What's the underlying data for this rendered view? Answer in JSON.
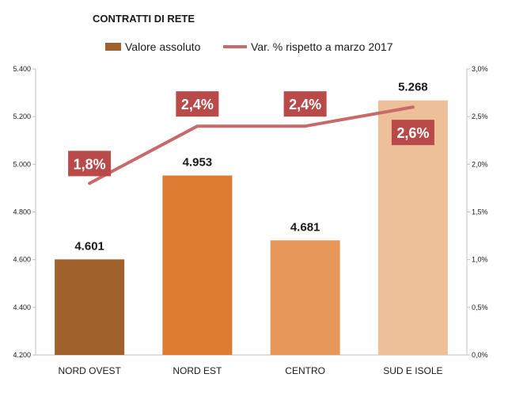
{
  "chart_data": {
    "type": "bar",
    "title": "CONTRATTI DI RETE",
    "categories": [
      "NORD OVEST",
      "NORD EST",
      "CENTRO",
      "SUD E ISOLE"
    ],
    "series": [
      {
        "name": "Valore assoluto",
        "type": "bar",
        "axis": "left",
        "values": [
          4601,
          4953,
          4681,
          5268
        ],
        "labels": [
          "4.601",
          "4.953",
          "4.681",
          "5.268"
        ],
        "colors": [
          "#a0612d",
          "#dd7b32",
          "#e8975a",
          "#eec09a"
        ]
      },
      {
        "name": "Var. % rispetto a marzo 2017",
        "type": "line",
        "axis": "right",
        "values": [
          1.8,
          2.4,
          2.4,
          2.6
        ],
        "labels": [
          "1,8%",
          "2,4%",
          "2,4%",
          "2,6%"
        ],
        "color": "#c96a6a",
        "label_bg": "#b84a4a"
      }
    ],
    "y_left": {
      "ylim": [
        4200,
        5400
      ],
      "ticks": [
        "4.200",
        "4.400",
        "4.600",
        "4.800",
        "5.000",
        "5.200",
        "5.400"
      ]
    },
    "y_right": {
      "ylim": [
        0,
        3
      ],
      "ticks": [
        "0,0%",
        "0,5%",
        "1,0%",
        "1,5%",
        "2,0%",
        "2,5%",
        "3,0%"
      ]
    },
    "legend": "top",
    "grid": false
  }
}
